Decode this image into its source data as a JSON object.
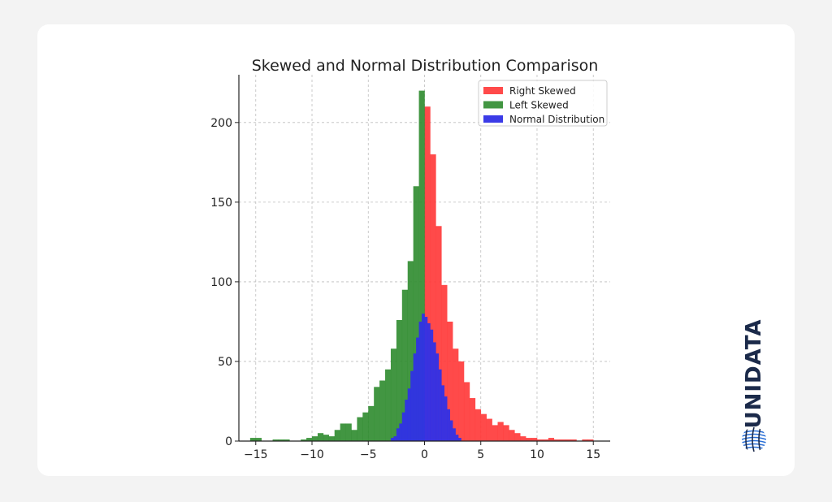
{
  "brand": {
    "name": "UNIDATA",
    "colors": {
      "dark": "#1b2a4a",
      "accent": "#2a6fd6"
    }
  },
  "chart_data": {
    "type": "bar",
    "title": "Skewed and Normal Distribution Comparison",
    "xlabel": "",
    "ylabel": "",
    "xlim": [
      -16.5,
      16.5
    ],
    "ylim": [
      0,
      230
    ],
    "xticks": [
      -15,
      -10,
      -5,
      0,
      5,
      10,
      15
    ],
    "xtick_labels": [
      "−15",
      "−10",
      "−5",
      "0",
      "5",
      "10",
      "15"
    ],
    "yticks": [
      0,
      50,
      100,
      150,
      200
    ],
    "ytick_labels": [
      "0",
      "50",
      "100",
      "150",
      "200"
    ],
    "grid": true,
    "legend_position": "top-right",
    "series": [
      {
        "name": "Right Skewed",
        "color": "#ff3b3b",
        "opacity": 0.92,
        "bin_width": 0.5,
        "bins": [
          [
            0,
            210
          ],
          [
            0.5,
            180
          ],
          [
            1,
            135
          ],
          [
            1.5,
            98
          ],
          [
            2,
            75
          ],
          [
            2.5,
            58
          ],
          [
            3,
            50
          ],
          [
            3.5,
            37
          ],
          [
            4,
            27
          ],
          [
            4.5,
            20
          ],
          [
            5,
            17
          ],
          [
            5.5,
            14
          ],
          [
            6,
            10
          ],
          [
            6.5,
            12
          ],
          [
            7,
            10
          ],
          [
            7.5,
            7
          ],
          [
            8,
            5
          ],
          [
            8.5,
            3
          ],
          [
            9,
            2
          ],
          [
            9.5,
            2
          ],
          [
            10,
            1
          ],
          [
            10.5,
            1
          ],
          [
            11,
            2
          ],
          [
            11.5,
            1
          ],
          [
            12,
            1
          ],
          [
            12.5,
            1
          ],
          [
            13,
            1
          ],
          [
            14,
            1
          ],
          [
            14.5,
            1
          ]
        ]
      },
      {
        "name": "Left Skewed",
        "color": "#2e8b2e",
        "opacity": 0.9,
        "bin_width": 0.5,
        "bins": [
          [
            -15.5,
            2
          ],
          [
            -15,
            2
          ],
          [
            -13.5,
            1
          ],
          [
            -13,
            1
          ],
          [
            -12.5,
            1
          ],
          [
            -11,
            1
          ],
          [
            -10.5,
            2
          ],
          [
            -10,
            3
          ],
          [
            -9.5,
            5
          ],
          [
            -9,
            4
          ],
          [
            -8.5,
            3
          ],
          [
            -8,
            7
          ],
          [
            -7.5,
            11
          ],
          [
            -7,
            11
          ],
          [
            -6.5,
            7
          ],
          [
            -6,
            15
          ],
          [
            -5.5,
            18
          ],
          [
            -5,
            22
          ],
          [
            -4.5,
            34
          ],
          [
            -4,
            38
          ],
          [
            -3.5,
            45
          ],
          [
            -3,
            58
          ],
          [
            -2.5,
            76
          ],
          [
            -2,
            95
          ],
          [
            -1.5,
            113
          ],
          [
            -1,
            160
          ],
          [
            -0.5,
            220
          ]
        ]
      },
      {
        "name": "Normal Distribution",
        "color": "#3030e6",
        "opacity": 0.95,
        "bin_width": 0.25,
        "bins": [
          [
            -3,
            2
          ],
          [
            -2.75,
            3
          ],
          [
            -2.5,
            8
          ],
          [
            -2.25,
            11
          ],
          [
            -2,
            18
          ],
          [
            -1.75,
            26
          ],
          [
            -1.5,
            33
          ],
          [
            -1.25,
            44
          ],
          [
            -1,
            55
          ],
          [
            -0.75,
            65
          ],
          [
            -0.5,
            75
          ],
          [
            -0.25,
            80
          ],
          [
            0,
            78
          ],
          [
            0.25,
            74
          ],
          [
            0.5,
            70
          ],
          [
            0.75,
            62
          ],
          [
            1,
            55
          ],
          [
            1.25,
            45
          ],
          [
            1.5,
            35
          ],
          [
            1.75,
            28
          ],
          [
            2,
            20
          ],
          [
            2.25,
            13
          ],
          [
            2.5,
            8
          ],
          [
            2.75,
            4
          ],
          [
            3,
            2
          ]
        ]
      }
    ]
  }
}
